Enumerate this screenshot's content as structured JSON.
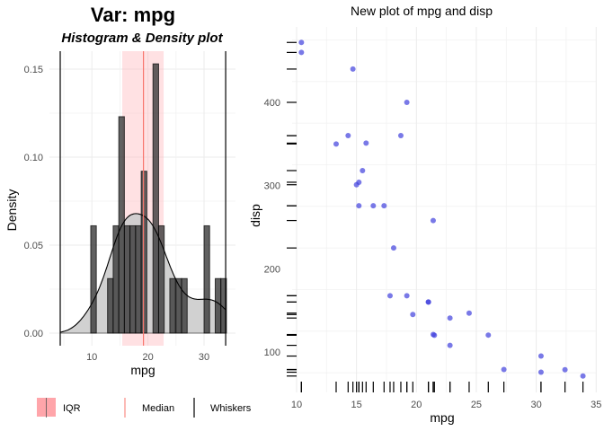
{
  "chart_data": [
    {
      "type": "bar",
      "title": "Var: mpg",
      "subtitle": "Histogram & Density plot",
      "xlabel": "mpg",
      "ylabel": "Density",
      "xlim": [
        4.36,
        33.86
      ],
      "ylim": [
        0,
        0.16
      ],
      "xticks": [
        "10",
        "20",
        "30"
      ],
      "yticks": [
        "0.00",
        "0.05",
        "0.10",
        "0.15"
      ],
      "grid": true,
      "bin_width": 1.0,
      "bins": [
        {
          "center": 10.3,
          "density": 0.061
        },
        {
          "center": 13.3,
          "density": 0.031
        },
        {
          "center": 14.3,
          "density": 0.061
        },
        {
          "center": 15.3,
          "density": 0.123
        },
        {
          "center": 16.3,
          "density": 0.061
        },
        {
          "center": 17.3,
          "density": 0.061
        },
        {
          "center": 18.3,
          "density": 0.061
        },
        {
          "center": 19.3,
          "density": 0.092
        },
        {
          "center": 21.4,
          "density": 0.153
        },
        {
          "center": 22.4,
          "density": 0.061
        },
        {
          "center": 24.4,
          "density": 0.031
        },
        {
          "center": 25.5,
          "density": 0.031
        },
        {
          "center": 26.5,
          "density": 0.031
        },
        {
          "center": 30.5,
          "density": 0.061
        },
        {
          "center": 32.5,
          "density": 0.031
        },
        {
          "center": 33.5,
          "density": 0.031
        }
      ],
      "density_curve": {
        "bandwidth": 2.48
      },
      "iqr": [
        15.425,
        22.8
      ],
      "median": 19.2,
      "whiskers": [
        4.36,
        33.86
      ],
      "colors": {
        "bars": "#595959",
        "density_fill": "#cccccc",
        "iqr": "#ffb3b8",
        "median": "#f8766d",
        "whiskers": "#000000"
      },
      "legend": {
        "placement": "bottom",
        "items": [
          {
            "label": "IQR"
          },
          {
            "label": "Median"
          },
          {
            "label": "Whiskers"
          }
        ]
      }
    },
    {
      "type": "scatter",
      "title": "New plot of mpg and disp",
      "xlabel": "mpg",
      "ylabel": "disp",
      "xlim": [
        9.6,
        35
      ],
      "ylim": [
        65,
        480
      ],
      "xticks": [
        "10",
        "15",
        "20",
        "25",
        "30",
        "35"
      ],
      "yticks": [
        "100",
        "200",
        "300",
        "400"
      ],
      "grid": true,
      "rug": true,
      "point_color": "#4040dd",
      "points": [
        [
          21,
          160
        ],
        [
          21,
          160
        ],
        [
          22.8,
          108
        ],
        [
          21.4,
          258
        ],
        [
          18.7,
          360
        ],
        [
          18.1,
          225
        ],
        [
          14.3,
          360
        ],
        [
          24.4,
          146.7
        ],
        [
          22.8,
          140.8
        ],
        [
          19.2,
          167.6
        ],
        [
          17.8,
          167.6
        ],
        [
          16.4,
          275.8
        ],
        [
          17.3,
          275.8
        ],
        [
          15.2,
          275.8
        ],
        [
          10.4,
          472
        ],
        [
          10.4,
          460
        ],
        [
          14.7,
          440
        ],
        [
          32.4,
          78.7
        ],
        [
          30.4,
          75.7
        ],
        [
          33.9,
          71.1
        ],
        [
          21.5,
          120.1
        ],
        [
          15.5,
          318
        ],
        [
          15.2,
          304
        ],
        [
          13.3,
          350
        ],
        [
          19.2,
          400
        ],
        [
          27.3,
          79
        ],
        [
          26,
          120.3
        ],
        [
          30.4,
          95.1
        ],
        [
          15.8,
          351
        ],
        [
          19.7,
          145
        ],
        [
          15,
          301
        ],
        [
          21.4,
          121
        ]
      ]
    }
  ]
}
